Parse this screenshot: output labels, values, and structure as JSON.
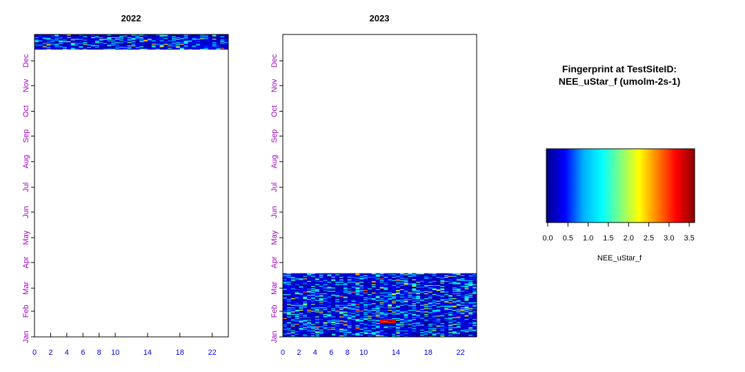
{
  "chart_data": [
    {
      "type": "heatmap",
      "title": "2022",
      "x_ticks": [
        "0",
        "2",
        "4",
        "6",
        "8",
        "10",
        "14",
        "18",
        "22"
      ],
      "y_ticks": [
        "Jan",
        "Feb",
        "Mar",
        "Apr",
        "May",
        "Jun",
        "Jul",
        "Aug",
        "Sep",
        "Oct",
        "Nov",
        "Dec"
      ],
      "xlim": [
        0,
        24
      ],
      "ylim": [
        1,
        366
      ],
      "data_rows": [
        [
          349,
          366
        ]
      ],
      "note_values": "half-hourly NEE_uStar_f, mostly 0.0-0.8 with sparse higher values"
    },
    {
      "type": "heatmap",
      "title": "2023",
      "x_ticks": [
        "0",
        "2",
        "4",
        "6",
        "8",
        "10",
        "14",
        "18",
        "22"
      ],
      "y_ticks": [
        "Jan",
        "Feb",
        "Mar",
        "Apr",
        "May",
        "Jun",
        "Jul",
        "Aug",
        "Sep",
        "Oct",
        "Nov",
        "Dec"
      ],
      "xlim": [
        0,
        24
      ],
      "ylim": [
        1,
        366
      ],
      "data_rows": [
        [
          1,
          77
        ]
      ],
      "note_values": "half-hourly NEE_uStar_f, mostly 0.0-0.8; peak about 3.6 near Jan 20 at hour 12-13"
    }
  ],
  "legend": {
    "title_line1": "Fingerprint at TestSiteID:",
    "title_line2": "NEE_uStar_f (umolm-2s-1)",
    "ticks": [
      "0.0",
      "0.5",
      "1.0",
      "1.5",
      "2.0",
      "2.5",
      "3.0",
      "3.5"
    ],
    "range": [
      0,
      3.6
    ],
    "xlabel": "NEE_uStar_f"
  },
  "colors": {
    "scale": [
      "#00008b",
      "#0000ff",
      "#00b0ff",
      "#00ffff",
      "#80ff80",
      "#ffff00",
      "#ff8000",
      "#ff0000",
      "#8b0000"
    ],
    "month_label": "#a000c0",
    "hour_label": "#0000ee"
  }
}
